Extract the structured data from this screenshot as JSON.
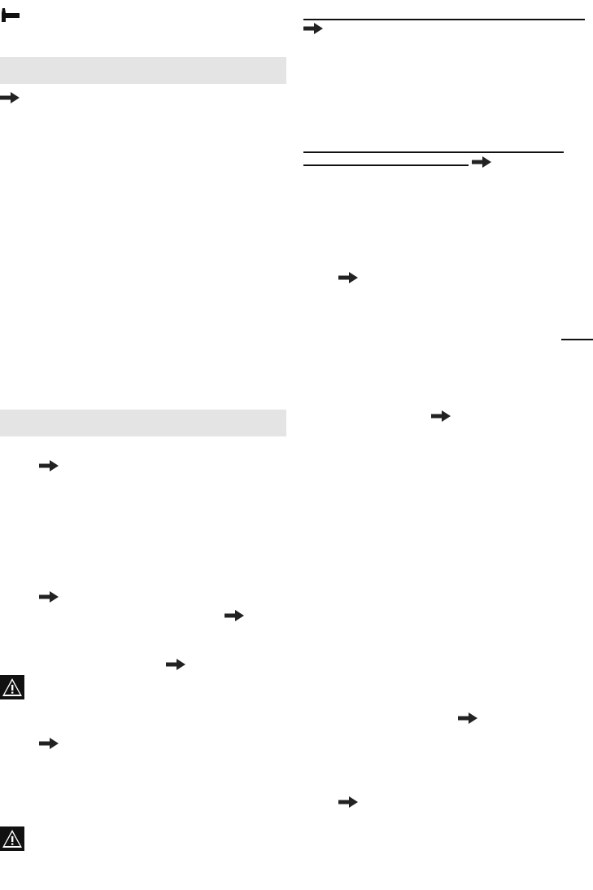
{
  "colors": {
    "ink": "#111111",
    "section_bar": "#e4e4e4"
  },
  "icons": {
    "header": "hammer-icon",
    "reference": "arrow-right-icon",
    "warning": "warning-triangle-icon"
  }
}
